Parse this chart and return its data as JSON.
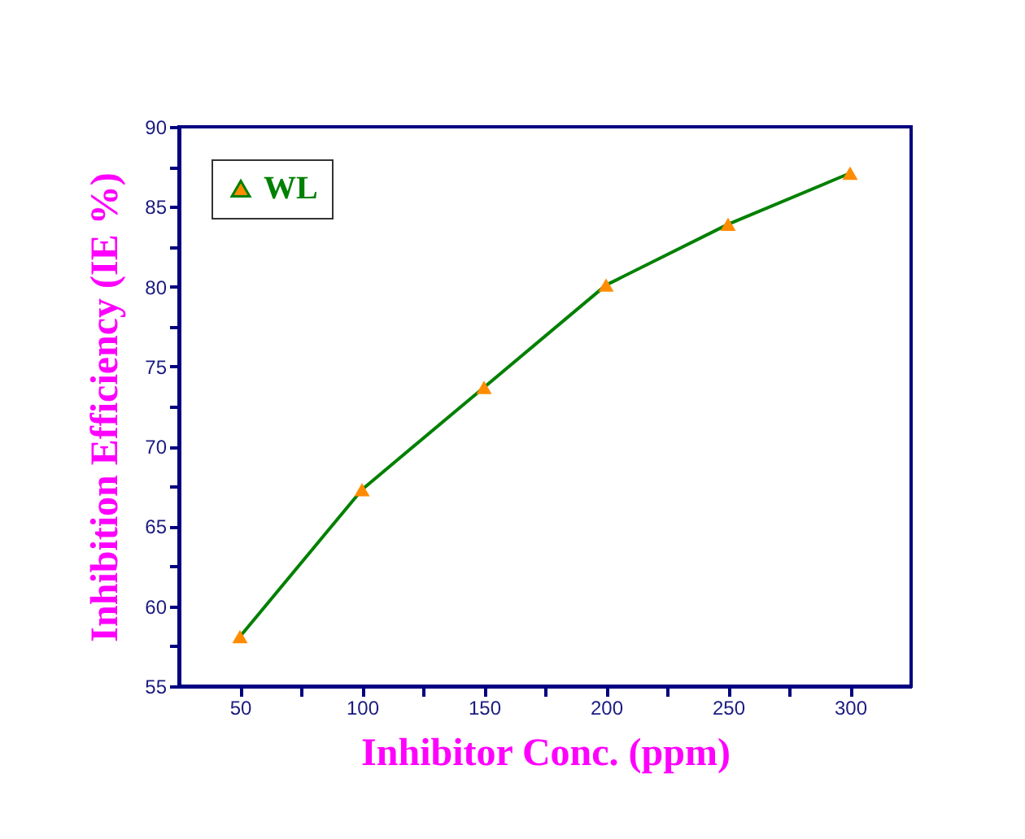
{
  "chart_data": {
    "type": "line",
    "xlabel": "Inhibitor Conc. (ppm)",
    "ylabel": "Inhibition Efficiency (IE %)",
    "x": [
      50,
      100,
      150,
      200,
      250,
      300
    ],
    "series": [
      {
        "name": "WL",
        "color": "#008000",
        "colors": [
          "#ff8c00",
          "#ff8c00",
          "#ff8c00",
          "#ff8c00",
          "#ff8c00",
          "#ff8c00"
        ],
        "values": [
          58.1,
          67.3,
          73.7,
          80.1,
          83.9,
          87.1
        ]
      }
    ],
    "xlim": [
      25,
      325
    ],
    "ylim": [
      55,
      90
    ],
    "xticks": [
      50,
      {
        "value": 75,
        "label": null
      },
      100,
      {
        "value": 125,
        "label": null
      },
      150,
      {
        "value": 175,
        "label": null
      },
      200,
      {
        "value": 225,
        "label": null
      },
      250,
      {
        "value": 275,
        "label": null
      },
      300
    ],
    "yticks": [
      55,
      {
        "value": 57.5,
        "label": null
      },
      60,
      {
        "value": 62.5,
        "label": null
      },
      65,
      {
        "value": 67.5,
        "label": null
      },
      70,
      {
        "value": 72.5,
        "label": null
      },
      75,
      {
        "value": 77.5,
        "label": null
      },
      80,
      {
        "value": 82.5,
        "label": null
      },
      85,
      {
        "value": 87.5,
        "label": null
      },
      90
    ],
    "marker": "triangle",
    "line_style": "solid",
    "legend": "top left",
    "grid": false
  }
}
